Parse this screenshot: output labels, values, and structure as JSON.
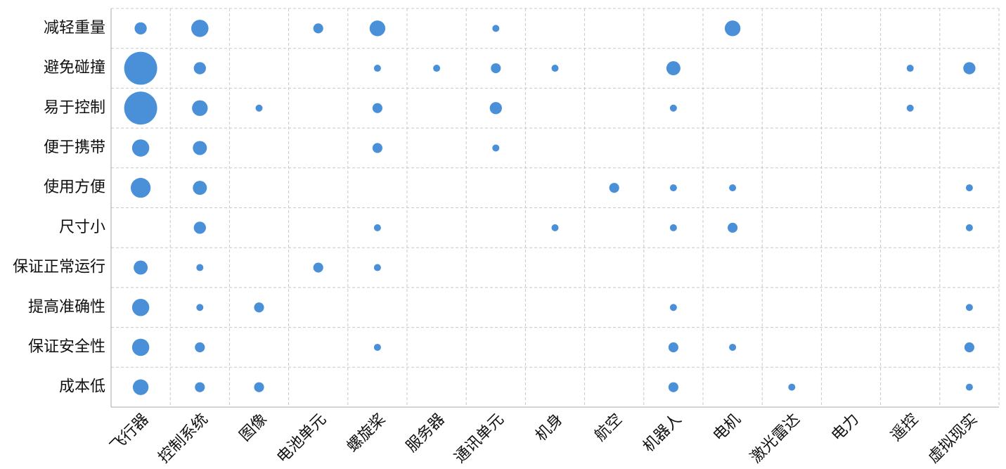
{
  "chart_data": {
    "type": "bubble-matrix",
    "color": "#4a90d9",
    "grid": true,
    "columns": [
      "飞行器",
      "控制系统",
      "图像",
      "电池单元",
      "螺旋桨",
      "服务器",
      "通讯单元",
      "机身",
      "航空",
      "机器人",
      "电机",
      "激光雷达",
      "电力",
      "遥控",
      "虚拟现实"
    ],
    "rows": [
      "减轻重量",
      "避免碰撞",
      "易于控制",
      "便于携带",
      "使用方便",
      "尺寸小",
      "保证正常运行",
      "提高准确性",
      "保证安全性",
      "成本低"
    ],
    "values": [
      [
        3,
        6,
        null,
        2,
        5,
        null,
        1,
        null,
        null,
        null,
        5,
        null,
        null,
        null,
        null
      ],
      [
        22,
        3,
        null,
        null,
        1,
        1,
        2,
        1,
        null,
        4,
        null,
        null,
        null,
        1,
        3
      ],
      [
        22,
        5,
        1,
        null,
        2,
        null,
        3,
        null,
        null,
        1,
        null,
        null,
        null,
        1,
        null
      ],
      [
        6,
        4,
        null,
        null,
        2,
        null,
        1,
        null,
        null,
        null,
        null,
        null,
        null,
        null,
        null
      ],
      [
        8,
        4,
        null,
        null,
        null,
        null,
        null,
        null,
        2,
        1,
        1,
        null,
        null,
        null,
        1
      ],
      [
        null,
        3,
        null,
        null,
        1,
        null,
        null,
        1,
        null,
        1,
        2,
        null,
        null,
        null,
        1
      ],
      [
        4,
        1,
        null,
        2,
        1,
        null,
        null,
        null,
        null,
        null,
        null,
        null,
        null,
        null,
        null
      ],
      [
        6,
        1,
        2,
        null,
        null,
        null,
        null,
        null,
        null,
        1,
        null,
        null,
        null,
        null,
        1
      ],
      [
        6,
        2,
        null,
        null,
        1,
        null,
        null,
        null,
        null,
        2,
        1,
        null,
        null,
        null,
        2
      ],
      [
        5,
        2,
        2,
        null,
        null,
        null,
        null,
        null,
        null,
        2,
        null,
        1,
        null,
        null,
        1
      ]
    ]
  }
}
